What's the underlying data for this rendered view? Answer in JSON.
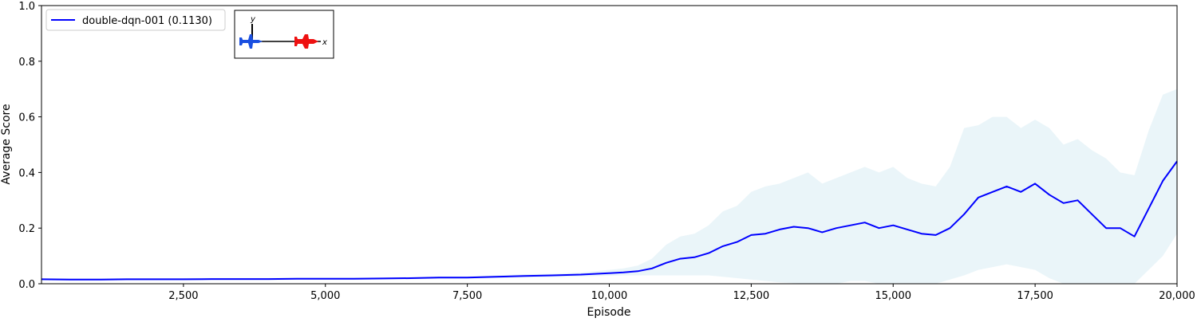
{
  "chart_data": {
    "type": "line",
    "title": "",
    "xlabel": "Episode",
    "ylabel": "Average Score",
    "xlim": [
      0,
      20000
    ],
    "ylim": [
      0.0,
      1.0
    ],
    "x_ticks": [
      2500,
      5000,
      7500,
      10000,
      12500,
      15000,
      17500,
      20000
    ],
    "x_tick_labels": [
      "2,500",
      "5,000",
      "7,500",
      "10,000",
      "12,500",
      "15,000",
      "17,500",
      "20,000"
    ],
    "y_ticks": [
      0.0,
      0.2,
      0.4,
      0.6,
      0.8,
      1.0
    ],
    "y_tick_labels": [
      "0.0",
      "0.2",
      "0.4",
      "0.6",
      "0.8",
      "1.0"
    ],
    "grid": false,
    "legend_position": "top-left",
    "series": [
      {
        "name": "double-dqn-001 (0.1130)",
        "color": "#0000ff",
        "band_color": "#add8e6",
        "x": [
          0,
          500,
          1000,
          1500,
          2000,
          2500,
          3000,
          3500,
          4000,
          4500,
          5000,
          5500,
          6000,
          6500,
          7000,
          7500,
          8000,
          8500,
          9000,
          9500,
          10000,
          10250,
          10500,
          10750,
          11000,
          11250,
          11500,
          11750,
          12000,
          12250,
          12500,
          12750,
          13000,
          13250,
          13500,
          13750,
          14000,
          14250,
          14500,
          14750,
          15000,
          15250,
          15500,
          15750,
          16000,
          16250,
          16500,
          16750,
          17000,
          17250,
          17500,
          17750,
          18000,
          18250,
          18500,
          18750,
          19000,
          19250,
          19500,
          19750,
          20000
        ],
        "y": [
          0.016,
          0.015,
          0.015,
          0.016,
          0.016,
          0.016,
          0.017,
          0.017,
          0.017,
          0.018,
          0.018,
          0.018,
          0.019,
          0.02,
          0.022,
          0.022,
          0.025,
          0.028,
          0.03,
          0.033,
          0.038,
          0.041,
          0.045,
          0.055,
          0.075,
          0.09,
          0.095,
          0.11,
          0.135,
          0.15,
          0.175,
          0.18,
          0.195,
          0.205,
          0.2,
          0.185,
          0.2,
          0.21,
          0.22,
          0.2,
          0.21,
          0.195,
          0.18,
          0.175,
          0.2,
          0.25,
          0.31,
          0.33,
          0.35,
          0.33,
          0.36,
          0.32,
          0.29,
          0.3,
          0.25,
          0.2,
          0.2,
          0.17,
          0.27,
          0.37,
          0.44
        ],
        "band_lower": [
          0.012,
          0.011,
          0.011,
          0.012,
          0.012,
          0.012,
          0.013,
          0.013,
          0.013,
          0.014,
          0.014,
          0.014,
          0.015,
          0.016,
          0.018,
          0.018,
          0.02,
          0.022,
          0.024,
          0.026,
          0.029,
          0.03,
          0.03,
          0.03,
          0.03,
          0.03,
          0.03,
          0.03,
          0.025,
          0.02,
          0.015,
          0.01,
          0.005,
          0.002,
          0.0,
          0.0,
          0.0,
          0.01,
          0.01,
          0.0,
          0.0,
          0.0,
          0.0,
          0.0,
          0.015,
          0.03,
          0.05,
          0.06,
          0.07,
          0.06,
          0.05,
          0.02,
          0.0,
          0.0,
          0.0,
          0.0,
          0.0,
          0.0,
          0.05,
          0.1,
          0.18
        ],
        "band_upper": [
          0.02,
          0.019,
          0.019,
          0.02,
          0.02,
          0.02,
          0.021,
          0.021,
          0.021,
          0.022,
          0.022,
          0.022,
          0.023,
          0.024,
          0.026,
          0.026,
          0.03,
          0.034,
          0.036,
          0.04,
          0.05,
          0.055,
          0.065,
          0.09,
          0.14,
          0.17,
          0.18,
          0.21,
          0.26,
          0.28,
          0.33,
          0.35,
          0.36,
          0.38,
          0.4,
          0.36,
          0.38,
          0.4,
          0.42,
          0.4,
          0.42,
          0.38,
          0.36,
          0.35,
          0.42,
          0.56,
          0.57,
          0.6,
          0.6,
          0.56,
          0.59,
          0.56,
          0.5,
          0.52,
          0.48,
          0.45,
          0.4,
          0.39,
          0.55,
          0.68,
          0.7
        ]
      }
    ]
  },
  "inset": {
    "axis_y_label": "y",
    "axis_x_label": "x",
    "blue_aircraft_color": "#1a4fe0",
    "red_aircraft_color": "#ee1111",
    "icons": [
      "blue-aircraft-icon",
      "red-aircraft-icon"
    ]
  }
}
